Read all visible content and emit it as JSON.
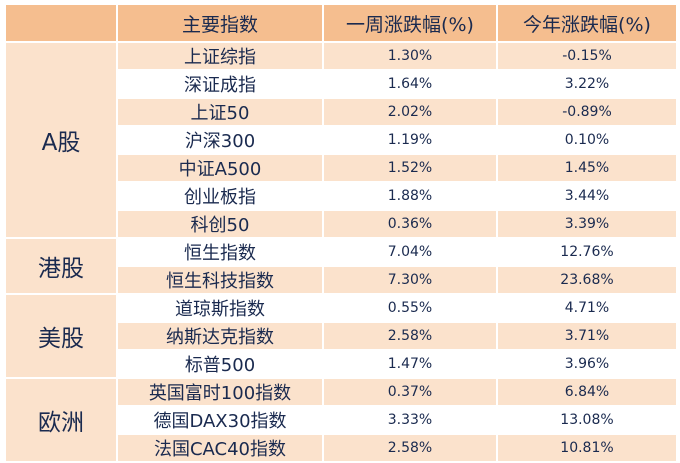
{
  "header": {
    "blank": "",
    "index_name": "主要指数",
    "week_change": "一周涨跌幅(%)",
    "ytd_change": "今年涨跌幅(%)"
  },
  "groups": [
    {
      "label": "A股",
      "rows": [
        {
          "name": "上证综指",
          "week": "1.30%",
          "ytd": "-0.15%"
        },
        {
          "name": "深证成指",
          "week": "1.64%",
          "ytd": "3.22%"
        },
        {
          "name": "上证50",
          "week": "2.02%",
          "ytd": "-0.89%"
        },
        {
          "name": "沪深300",
          "week": "1.19%",
          "ytd": "0.10%"
        },
        {
          "name": "中证A500",
          "week": "1.52%",
          "ytd": "1.45%"
        },
        {
          "name": "创业板指",
          "week": "1.88%",
          "ytd": "3.44%"
        },
        {
          "name": "科创50",
          "week": "0.36%",
          "ytd": "3.39%"
        }
      ]
    },
    {
      "label": "港股",
      "rows": [
        {
          "name": "恒生指数",
          "week": "7.04%",
          "ytd": "12.76%"
        },
        {
          "name": "恒生科技指数",
          "week": "7.30%",
          "ytd": "23.68%"
        }
      ]
    },
    {
      "label": "美股",
      "rows": [
        {
          "name": "道琼斯指数",
          "week": "0.55%",
          "ytd": "4.71%"
        },
        {
          "name": "纳斯达克指数",
          "week": "2.58%",
          "ytd": "3.71%"
        },
        {
          "name": "标普500",
          "week": "1.47%",
          "ytd": "3.96%"
        }
      ]
    },
    {
      "label": "欧洲",
      "rows": [
        {
          "name": "英国富时100指数",
          "week": "0.37%",
          "ytd": "6.84%"
        },
        {
          "name": "德国DAX30指数",
          "week": "3.33%",
          "ytd": "13.08%"
        },
        {
          "name": "法国CAC40指数",
          "week": "2.58%",
          "ytd": "10.81%"
        }
      ]
    }
  ],
  "colors": {
    "header_bg": "#f5be8f",
    "stripe_bg": "#fbe2cc",
    "text": "#1a2a4f"
  }
}
